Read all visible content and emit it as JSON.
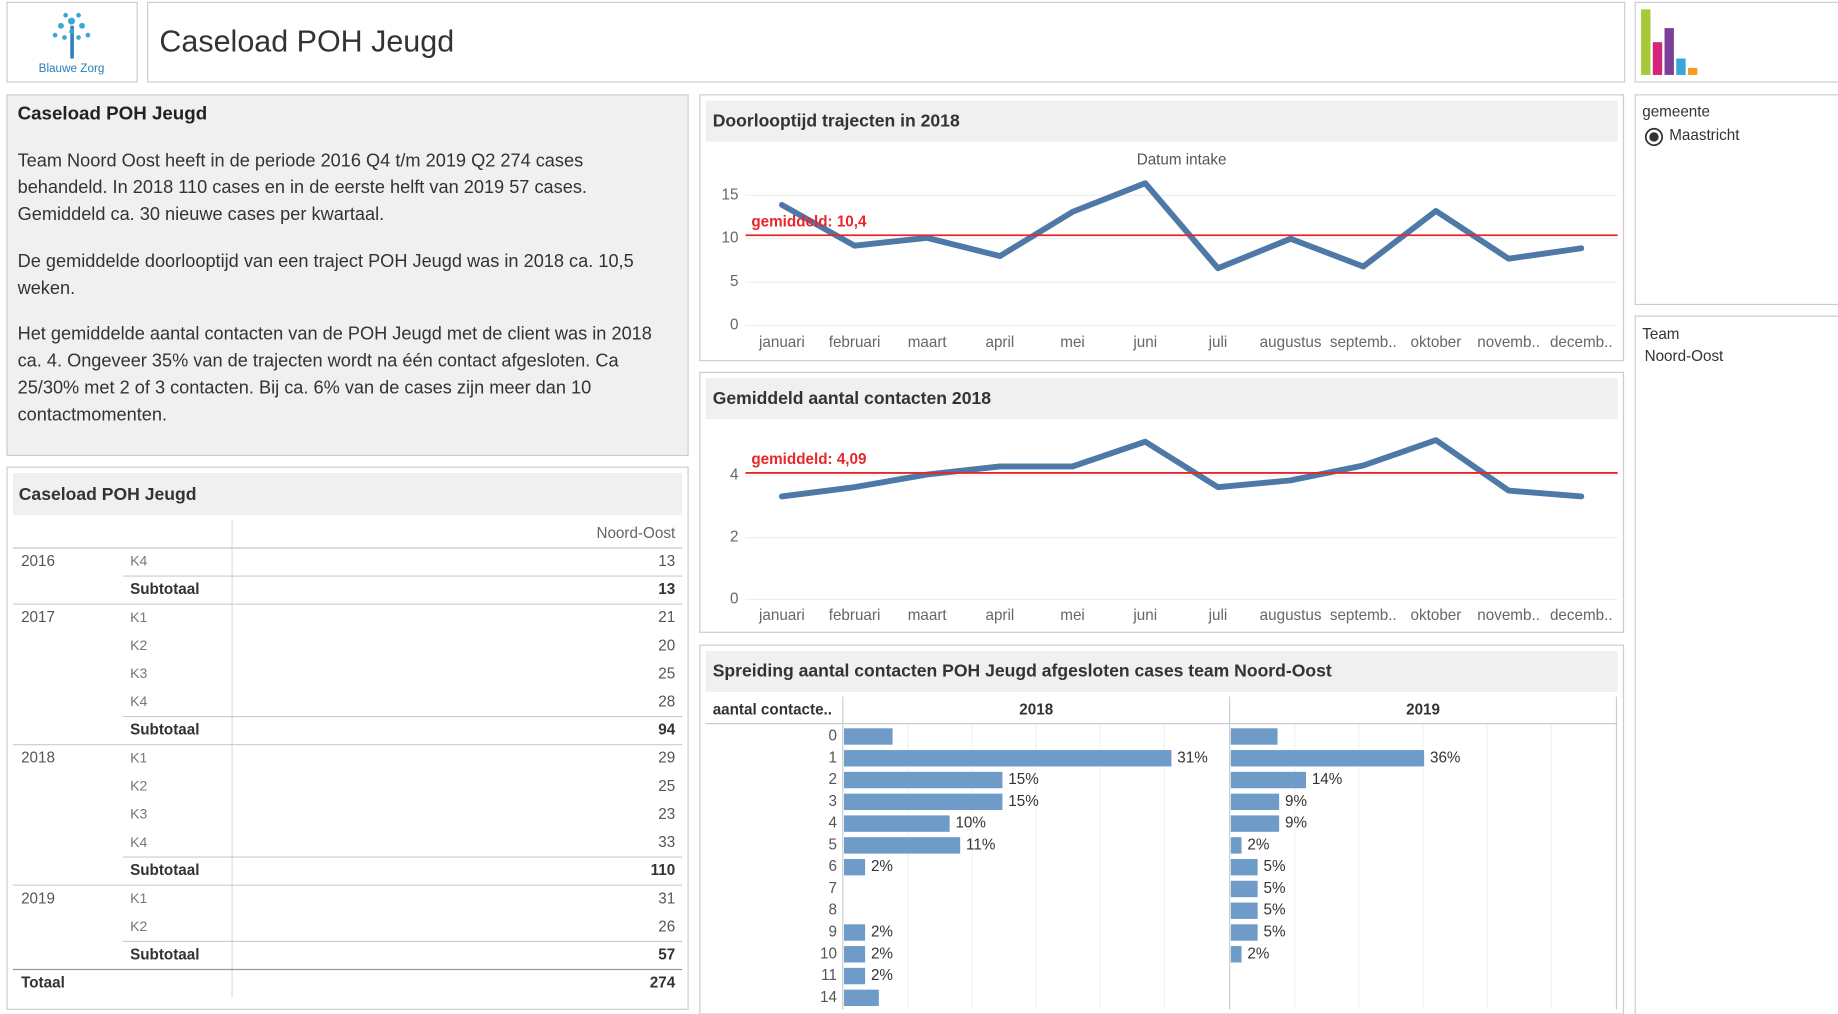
{
  "header": {
    "logo": "Blauwe Zorg",
    "title": "Caseload POH Jeugd"
  },
  "text_panel": {
    "title": "Caseload POH Jeugd",
    "paragraphs": [
      "Team Noord Oost heeft in de periode 2016 Q4 t/m 2019 Q2 274 cases behandeld. In 2018 110 cases en in de eerste helft van 2019 57 cases. Gemiddeld ca. 30 nieuwe cases per kwartaal.",
      "De gemiddelde doorlooptijd van een traject POH Jeugd was in 2018 ca. 10,5 weken.",
      "Het gemiddelde aantal contacten van de POH Jeugd met de client was in 2018 ca. 4. Ongeveer 35% van de trajecten wordt na één contact afgesloten. Ca 25/30% met 2 of 3 contacten. Bij ca. 6% van de cases zijn meer dan 10 contactmomenten."
    ]
  },
  "table": {
    "title": "Caseload POH Jeugd",
    "column": "Noord-Oost",
    "subtotal_label": "Subtotaal",
    "total_label": "Totaal",
    "total": 274,
    "groups": [
      {
        "year": "2016",
        "rows": [
          {
            "quarter": "K4",
            "value": 13
          }
        ],
        "subtotal": 13
      },
      {
        "year": "2017",
        "rows": [
          {
            "quarter": "K1",
            "value": 21
          },
          {
            "quarter": "K2",
            "value": 20
          },
          {
            "quarter": "K3",
            "value": 25
          },
          {
            "quarter": "K4",
            "value": 28
          }
        ],
        "subtotal": 94
      },
      {
        "year": "2018",
        "rows": [
          {
            "quarter": "K1",
            "value": 29
          },
          {
            "quarter": "K2",
            "value": 25
          },
          {
            "quarter": "K3",
            "value": 23
          },
          {
            "quarter": "K4",
            "value": 33
          }
        ],
        "subtotal": 110
      },
      {
        "year": "2019",
        "rows": [
          {
            "quarter": "K1",
            "value": 31
          },
          {
            "quarter": "K2",
            "value": 26
          }
        ],
        "subtotal": 57
      }
    ]
  },
  "filters": [
    {
      "title": "gemeente",
      "value": "Maastricht"
    },
    {
      "title": "Team",
      "value": "Noord-Oost"
    }
  ],
  "chart_data": [
    {
      "type": "line",
      "title": "Doorlooptijd trajecten in 2018",
      "subtitle": "Datum intake",
      "categories": [
        "januari",
        "februari",
        "maart",
        "april",
        "mei",
        "juni",
        "juli",
        "augustus",
        "septemb..",
        "oktober",
        "novemb..",
        "decemb.."
      ],
      "values": [
        13.9,
        9.2,
        10.1,
        8.0,
        13.1,
        16.4,
        6.6,
        10.0,
        6.8,
        13.2,
        7.7,
        8.9
      ],
      "color": "#4e79a7",
      "ylim": [
        0,
        17
      ],
      "yticks": [
        0,
        5,
        10,
        15
      ],
      "grid": true,
      "reference": {
        "value": 10.4,
        "label": "gemiddeld: 10,4",
        "color": "#e8262b"
      }
    },
    {
      "type": "line",
      "title": "Gemiddeld aantal contacten 2018",
      "categories": [
        "januari",
        "februari",
        "maart",
        "april",
        "mei",
        "juni",
        "juli",
        "augustus",
        "septemb..",
        "oktober",
        "novemb..",
        "decemb.."
      ],
      "values": [
        3.33,
        3.63,
        4.04,
        4.3,
        4.3,
        5.1,
        3.63,
        3.85,
        4.33,
        5.15,
        3.52,
        3.33
      ],
      "color": "#4e79a7",
      "ylim": [
        0,
        5.6
      ],
      "yticks": [
        0,
        2,
        4
      ],
      "grid": true,
      "reference": {
        "value": 4.09,
        "label": "gemiddeld: 4,09",
        "color": "#e8262b"
      }
    },
    {
      "type": "hbar",
      "title": "Spreiding aantal contacten POH Jeugd afgesloten cases team Noord-Oost",
      "row_header": "aantal contacte..",
      "categories": [
        "0",
        "1",
        "2",
        "3",
        "4",
        "5",
        "6",
        "7",
        "8",
        "9",
        "10",
        "11",
        "14"
      ],
      "series": [
        {
          "name": "2018",
          "color": "#6f9bc8",
          "xlim": [
            0,
            36.4
          ],
          "values": [
            4.6,
            31,
            15,
            15,
            10,
            11,
            2,
            null,
            null,
            2,
            2,
            2,
            3.3
          ],
          "value_labels": [
            null,
            "31%",
            "15%",
            "15%",
            "10%",
            "11%",
            "2%",
            null,
            null,
            "2%",
            "2%",
            "2%",
            null
          ]
        },
        {
          "name": "2019",
          "color": "#6f9bc8",
          "xlim": [
            0,
            71.6
          ],
          "values": [
            8.7,
            36,
            14,
            9,
            9,
            2,
            5,
            5,
            5,
            5,
            2,
            null,
            null
          ],
          "value_labels": [
            null,
            "36%",
            "14%",
            "9%",
            "9%",
            "2%",
            "5%",
            "5%",
            "5%",
            "5%",
            "2%",
            null,
            null
          ]
        }
      ]
    }
  ]
}
